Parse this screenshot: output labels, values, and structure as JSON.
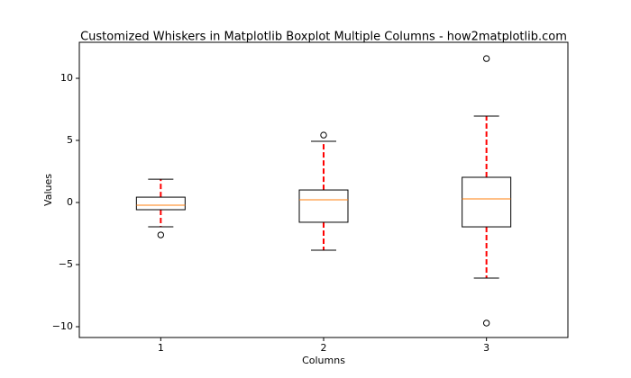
{
  "chart_data": {
    "type": "boxplot",
    "title": "Customized Whiskers in Matplotlib Boxplot Multiple Columns - how2matplotlib.com",
    "xlabel": "Columns",
    "ylabel": "Values",
    "categories": [
      "1",
      "2",
      "3"
    ],
    "boxes": [
      {
        "whislo": -1.96,
        "q1": -0.58,
        "med": -0.22,
        "q3": 0.43,
        "whishi": 1.88,
        "fliers": [
          -2.61
        ]
      },
      {
        "whislo": -3.84,
        "q1": -1.59,
        "med": 0.22,
        "q3": 1.01,
        "whishi": 4.93,
        "fliers": [
          5.43
        ]
      },
      {
        "whislo": -6.09,
        "q1": -1.96,
        "med": 0.29,
        "q3": 2.03,
        "whishi": 6.96,
        "fliers": [
          11.59,
          -9.71
        ]
      }
    ],
    "box_color": "#000000",
    "median_color": "#ff7f0e",
    "whisker_color": "#ff0000",
    "ylim": [
      -10.87,
      12.9
    ],
    "yticks": [
      {
        "value": -10,
        "label": "−10"
      },
      {
        "value": -5,
        "label": "−5"
      },
      0,
      5,
      10
    ]
  }
}
